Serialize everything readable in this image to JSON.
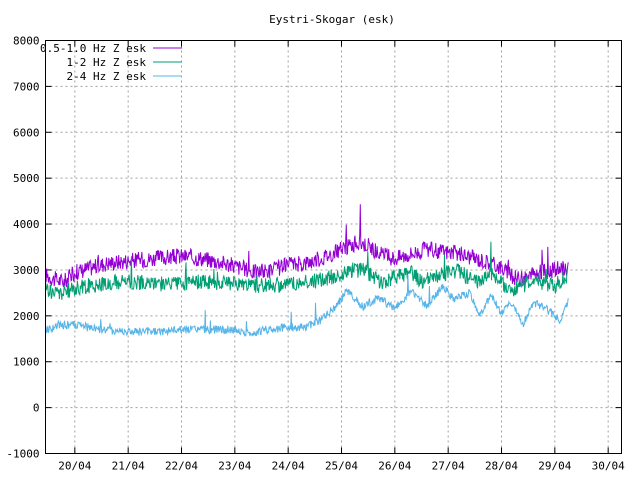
{
  "chart_data": {
    "type": "line",
    "title": "Eystri-Skogar (esk)",
    "xlabel": "",
    "ylabel": "",
    "ylim": [
      -1000,
      8000
    ],
    "yticks": [
      -1000,
      0,
      1000,
      2000,
      3000,
      4000,
      5000,
      6000,
      7000,
      8000
    ],
    "xlim": [
      19.45,
      30.25
    ],
    "xticks": [
      {
        "value": 20,
        "label": "20/04"
      },
      {
        "value": 21,
        "label": "21/04"
      },
      {
        "value": 22,
        "label": "22/04"
      },
      {
        "value": 23,
        "label": "23/04"
      },
      {
        "value": 24,
        "label": "24/04"
      },
      {
        "value": 25,
        "label": "25/04"
      },
      {
        "value": 26,
        "label": "26/04"
      },
      {
        "value": 27,
        "label": "27/04"
      },
      {
        "value": 28,
        "label": "28/04"
      },
      {
        "value": 29,
        "label": "29/04"
      },
      {
        "value": 30,
        "label": "30/04"
      }
    ],
    "grid": true,
    "legend_position": "top-left",
    "series": [
      {
        "name": "0.5-1.0 Hz Z esk",
        "color": "#9400d3",
        "x": [
          19.45,
          19.6,
          19.8,
          20.0,
          20.3,
          20.6,
          21.0,
          21.5,
          22.0,
          22.4,
          22.8,
          23.1,
          23.4,
          23.7,
          24.0,
          24.3,
          24.6,
          24.9,
          25.1,
          25.3,
          25.5,
          25.7,
          26.0,
          26.3,
          26.6,
          26.9,
          27.2,
          27.5,
          27.8,
          28.0,
          28.2,
          28.4,
          28.7,
          29.0,
          29.25
        ],
        "y": [
          2900,
          2800,
          2750,
          2950,
          3050,
          3150,
          3200,
          3250,
          3300,
          3250,
          3150,
          3050,
          2950,
          3000,
          3100,
          3150,
          3250,
          3400,
          3500,
          3600,
          3550,
          3350,
          3250,
          3350,
          3450,
          3400,
          3350,
          3250,
          3150,
          3050,
          2850,
          2800,
          2950,
          3000,
          3050
        ]
      },
      {
        "name": "1-2 Hz Z esk",
        "color": "#009e73",
        "x": [
          19.45,
          19.6,
          19.8,
          20.0,
          20.5,
          21.0,
          21.5,
          22.0,
          22.5,
          23.0,
          23.5,
          24.0,
          24.5,
          25.0,
          25.2,
          25.4,
          25.6,
          25.8,
          26.0,
          26.3,
          26.5,
          26.7,
          27.0,
          27.2,
          27.4,
          27.6,
          27.8,
          28.0,
          28.2,
          28.4,
          28.6,
          28.8,
          29.0,
          29.25
        ],
        "y": [
          2600,
          2500,
          2500,
          2600,
          2700,
          2750,
          2700,
          2700,
          2750,
          2700,
          2650,
          2700,
          2750,
          2900,
          3000,
          3000,
          2850,
          2700,
          2850,
          2950,
          2750,
          2800,
          2950,
          3000,
          2800,
          2750,
          2950,
          2700,
          2550,
          2650,
          2850,
          2700,
          2650,
          2900
        ]
      },
      {
        "name": "2-4 Hz Z esk",
        "color": "#56b4e9",
        "x": [
          19.45,
          19.6,
          19.8,
          20.0,
          20.5,
          21.0,
          21.5,
          22.0,
          22.5,
          23.0,
          23.3,
          23.6,
          24.0,
          24.3,
          24.6,
          24.9,
          25.1,
          25.4,
          25.7,
          26.0,
          26.3,
          26.6,
          26.9,
          27.1,
          27.4,
          27.6,
          27.8,
          28.0,
          28.2,
          28.4,
          28.6,
          28.9,
          29.1,
          29.25
        ],
        "y": [
          1700,
          1750,
          1800,
          1800,
          1700,
          1650,
          1650,
          1700,
          1700,
          1700,
          1600,
          1700,
          1750,
          1750,
          1900,
          2200,
          2550,
          2200,
          2400,
          2150,
          2550,
          2200,
          2650,
          2350,
          2500,
          2000,
          2450,
          2050,
          2300,
          1800,
          2300,
          2100,
          1900,
          2300
        ]
      }
    ]
  }
}
